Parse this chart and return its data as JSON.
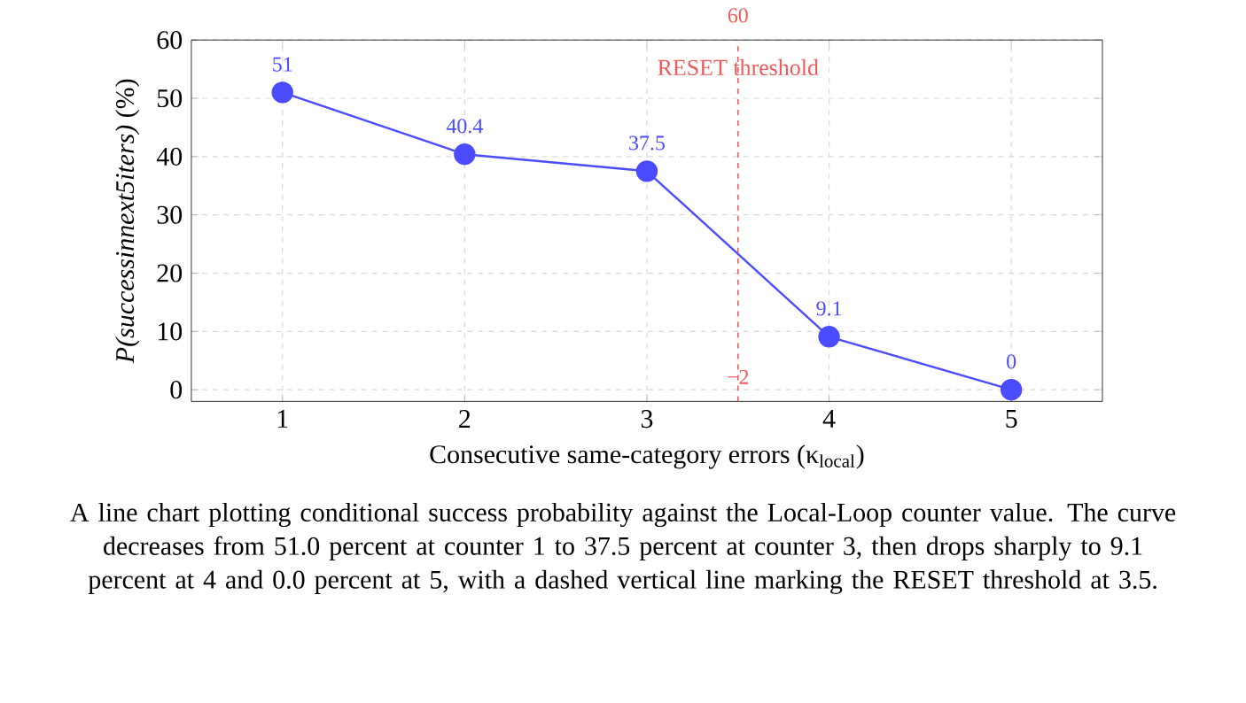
{
  "chart_data": {
    "type": "line",
    "xlabel": "Consecutive same-category errors (κ$_{local}$)",
    "ylabel": "*P(successinnext5iters)* (%)",
    "x": [
      1,
      2,
      3,
      4,
      5
    ],
    "series": [
      {
        "color": "#4b4bff",
        "values": [
          51,
          40.4,
          37.5,
          9.1,
          0
        ]
      }
    ],
    "xlim": [
      0.5,
      5.5
    ],
    "ylim": [
      -2,
      60
    ],
    "xticks": [
      1,
      2,
      3,
      4,
      5
    ],
    "yticks": [
      0,
      10,
      20,
      30,
      40,
      50,
      60
    ],
    "grid": true,
    "marker": "circle",
    "line_style": "solid",
    "data_labels": true,
    "ref_lines": [
      {
        "axis": "x",
        "value": 3.5,
        "label": "RESET threshold",
        "color": "#f05a5a",
        "line_style": "dashed"
      }
    ],
    "annotations": [
      "A line chart plotting conditional success probability against the Local-Loop counter value. The curve decreases from 51.0 percent at counter 1 to 37.5 percent at counter 3, then drops sharply to 9.1 percent at 4 and 0.0 percent at 5, with a dashed vertical line marking the RESET threshold at 3.5.",
      {
        "text": "60",
        "x": 3.5,
        "y": 60
      },
      {
        "text": "−2",
        "x": 3.5,
        "y": -2
      }
    ]
  }
}
